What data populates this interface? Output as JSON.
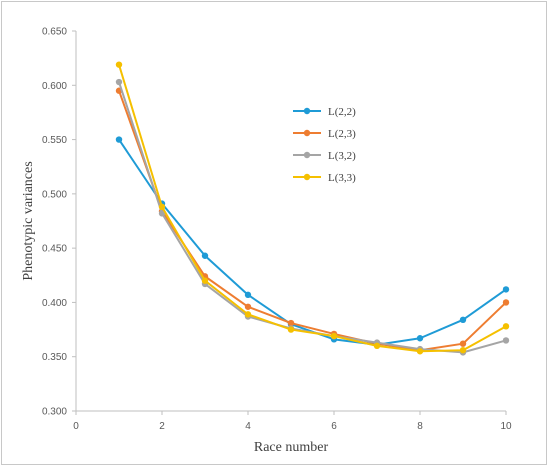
{
  "chart_data": {
    "type": "line",
    "title": "",
    "xlabel": "Race number",
    "ylabel": "Phenotypic variances",
    "xlim": [
      0,
      10
    ],
    "ylim": [
      0.3,
      0.65
    ],
    "xticks": [
      "0",
      "2",
      "4",
      "6",
      "8",
      "10"
    ],
    "yticks": [
      "0.300",
      "0.350",
      "0.400",
      "0.450",
      "0.500",
      "0.550",
      "0.600",
      "0.650"
    ],
    "grid": false,
    "legend_position": "upper-center",
    "x": [
      1,
      2,
      3,
      4,
      5,
      6,
      7,
      8,
      9,
      10
    ],
    "series": [
      {
        "name": "L(2,2)",
        "color": "#1f9bd6",
        "values": [
          0.55,
          0.491,
          0.443,
          0.407,
          0.38,
          0.366,
          0.361,
          0.367,
          0.384,
          0.412
        ]
      },
      {
        "name": "L(2,3)",
        "color": "#ee7d31",
        "values": [
          0.595,
          0.484,
          0.424,
          0.396,
          0.381,
          0.371,
          0.362,
          0.356,
          0.362,
          0.4
        ]
      },
      {
        "name": "L(3,2)",
        "color": "#a5a5a5",
        "values": [
          0.603,
          0.482,
          0.417,
          0.387,
          0.376,
          0.369,
          0.363,
          0.357,
          0.354,
          0.365
        ]
      },
      {
        "name": "L(3,3)",
        "color": "#f5c000",
        "values": [
          0.619,
          0.488,
          0.42,
          0.389,
          0.375,
          0.369,
          0.36,
          0.355,
          0.356,
          0.378
        ]
      }
    ]
  }
}
